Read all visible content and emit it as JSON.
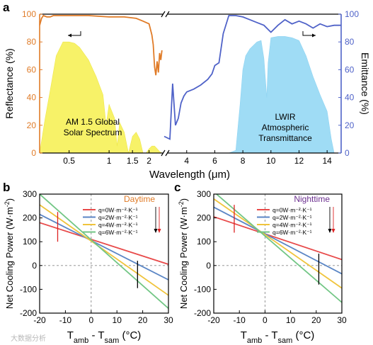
{
  "colors": {
    "reflectance": "#e07b27",
    "emittance": "#4f62c8",
    "solar_fill": "#f7f268",
    "lwir_fill": "#9fdcf5",
    "q0": "#e84a4a",
    "q2": "#5b86c5",
    "q4": "#f0c43c",
    "q6": "#72c685",
    "daytime_label": "#e07b27",
    "nighttime_label": "#6b2f8f",
    "axis": "#000000"
  },
  "watermark": "大数据分析",
  "chart_data": [
    {
      "type": "area",
      "panel_label": "a",
      "xlabel": "Wavelength (μm)",
      "ylabel_left": "Reflectance (%)",
      "ylabel_right": "Emittance (%)",
      "ylim": [
        0,
        100
      ],
      "yticks": [
        "0",
        "20",
        "40",
        "60",
        "80",
        "100"
      ],
      "x_segments": [
        {
          "range": [
            0.3,
            2.6
          ],
          "scale": "log",
          "ticks": [
            "0.5",
            "1",
            "1.5",
            "2"
          ]
        },
        {
          "range": [
            2.6,
            15
          ],
          "scale": "linear",
          "ticks": [
            "4",
            "6",
            "8",
            "10",
            "12",
            "14"
          ]
        }
      ],
      "annotations": [
        "AM 1.5 Global",
        "Solar Spectrum",
        "LWIR",
        "Atmospheric",
        "Transmittance"
      ],
      "series": [
        {
          "name": "Reflectance",
          "axis": "left",
          "x": [
            0.3,
            0.31,
            0.32,
            0.34,
            0.36,
            0.38,
            0.4,
            0.5,
            0.7,
            1.0,
            1.3,
            1.6,
            1.8,
            2.0,
            2.1,
            2.15,
            2.2,
            2.25,
            2.3,
            2.35,
            2.4,
            2.45,
            2.5
          ],
          "y": [
            92,
            97,
            99,
            98,
            98,
            99,
            99,
            99,
            99,
            98,
            98,
            97,
            95,
            93,
            85,
            78,
            62,
            56,
            66,
            58,
            72,
            67,
            74
          ]
        },
        {
          "name": "Emittance",
          "axis": "right",
          "x": [
            2.6,
            2.8,
            3.0,
            3.2,
            3.4,
            3.6,
            3.8,
            4.0,
            4.5,
            5.0,
            5.5,
            5.8,
            6.0,
            6.3,
            6.6,
            7.0,
            7.5,
            8.0,
            8.5,
            9.0,
            9.5,
            10.0,
            10.5,
            11.0,
            11.5,
            12.0,
            12.5,
            13.0,
            13.5,
            14.0,
            14.5,
            15.0
          ],
          "y": [
            12,
            10,
            50,
            20,
            25,
            36,
            41,
            44,
            46,
            49,
            53,
            57,
            63,
            65,
            86,
            99,
            99,
            98,
            96,
            94,
            92,
            87,
            92,
            96,
            93,
            95,
            93,
            90,
            93,
            91,
            92,
            92
          ]
        },
        {
          "name": "AM 1.5 Global Solar Spectrum",
          "axis": "left",
          "x": [
            0.3,
            0.33,
            0.36,
            0.4,
            0.45,
            0.5,
            0.55,
            0.6,
            0.7,
            0.8,
            0.9,
            0.95,
            1.0,
            1.1,
            1.15,
            1.2,
            1.3,
            1.4,
            1.5,
            1.6,
            1.7,
            1.8,
            1.9,
            2.0,
            2.1,
            2.2,
            2.3,
            2.4,
            2.5
          ],
          "y": [
            0,
            25,
            45,
            70,
            80,
            80,
            79,
            76,
            67,
            55,
            42,
            20,
            35,
            25,
            5,
            22,
            15,
            0,
            12,
            15,
            10,
            0,
            0,
            3,
            5,
            5,
            3,
            1,
            0
          ]
        },
        {
          "name": "LWIR Atmospheric Transmittance",
          "axis": "right",
          "x": [
            7.0,
            7.5,
            7.8,
            8.0,
            8.2,
            8.5,
            9.0,
            9.3,
            9.5,
            9.7,
            9.8,
            10.0,
            10.5,
            11.0,
            11.5,
            12.0,
            12.5,
            13.0,
            13.5,
            14.0,
            14.3,
            14.5
          ],
          "y": [
            0,
            2,
            35,
            60,
            70,
            75,
            80,
            81,
            68,
            40,
            65,
            83,
            84,
            84,
            83,
            81,
            70,
            55,
            42,
            30,
            10,
            0
          ]
        }
      ]
    },
    {
      "type": "line",
      "panel_label": "b",
      "title": "Daytime",
      "xlabel": "T_amb - T_sam (°C)",
      "ylabel": "Net Cooling Power (W·m⁻²)",
      "xlim": [
        -20,
        30
      ],
      "ylim": [
        -200,
        300
      ],
      "xticks": [
        "-20",
        "-10",
        "0",
        "10",
        "20",
        "30"
      ],
      "yticks": [
        "-200",
        "-100",
        "0",
        "100",
        "200",
        "300"
      ],
      "series": [
        {
          "name": "q=0W·m⁻²·K⁻¹",
          "x": [
            -20,
            30
          ],
          "y": [
            180,
            5
          ]
        },
        {
          "name": "q=2W·m⁻²·K⁻¹",
          "x": [
            -20,
            30
          ],
          "y": [
            215,
            -60
          ]
        },
        {
          "name": "q=4W·m⁻²·K⁻¹",
          "x": [
            -20,
            30
          ],
          "y": [
            255,
            -125
          ]
        },
        {
          "name": "q=6W·m⁻²·K⁻¹",
          "x": [
            -20,
            30
          ],
          "y": [
            300,
            -180
          ]
        }
      ],
      "markers": [
        {
          "x": -13,
          "y1": 100,
          "y2": 225,
          "color": "red"
        },
        {
          "x": 18,
          "y1": -95,
          "y2": 20,
          "color": "black"
        }
      ]
    },
    {
      "type": "line",
      "panel_label": "c",
      "title": "Nighttime",
      "xlabel": "T_amb - T_sam (°C)",
      "ylabel": "Net Cooling Power (W·m⁻²)",
      "xlim": [
        -20,
        30
      ],
      "ylim": [
        -200,
        300
      ],
      "xticks": [
        "-20",
        "-10",
        "0",
        "10",
        "20",
        "30"
      ],
      "yticks": [
        "-200",
        "-100",
        "0",
        "100",
        "200",
        "300"
      ],
      "series": [
        {
          "name": "q=0W·m⁻²·K⁻¹",
          "x": [
            -20,
            30
          ],
          "y": [
            205,
            25
          ]
        },
        {
          "name": "q=2W·m⁻²·K⁻¹",
          "x": [
            -20,
            30
          ],
          "y": [
            245,
            -35
          ]
        },
        {
          "name": "q=4W·m⁻²·K⁻¹",
          "x": [
            -20,
            30
          ],
          "y": [
            280,
            -95
          ]
        },
        {
          "name": "q=6W·m⁻²·K⁻¹",
          "x": [
            -20,
            30
          ],
          "y": [
            310,
            -155
          ]
        }
      ],
      "markers": [
        {
          "x": -12,
          "y1": 138,
          "y2": 255,
          "color": "red"
        },
        {
          "x": 21,
          "y1": -80,
          "y2": 50,
          "color": "black"
        }
      ]
    }
  ]
}
